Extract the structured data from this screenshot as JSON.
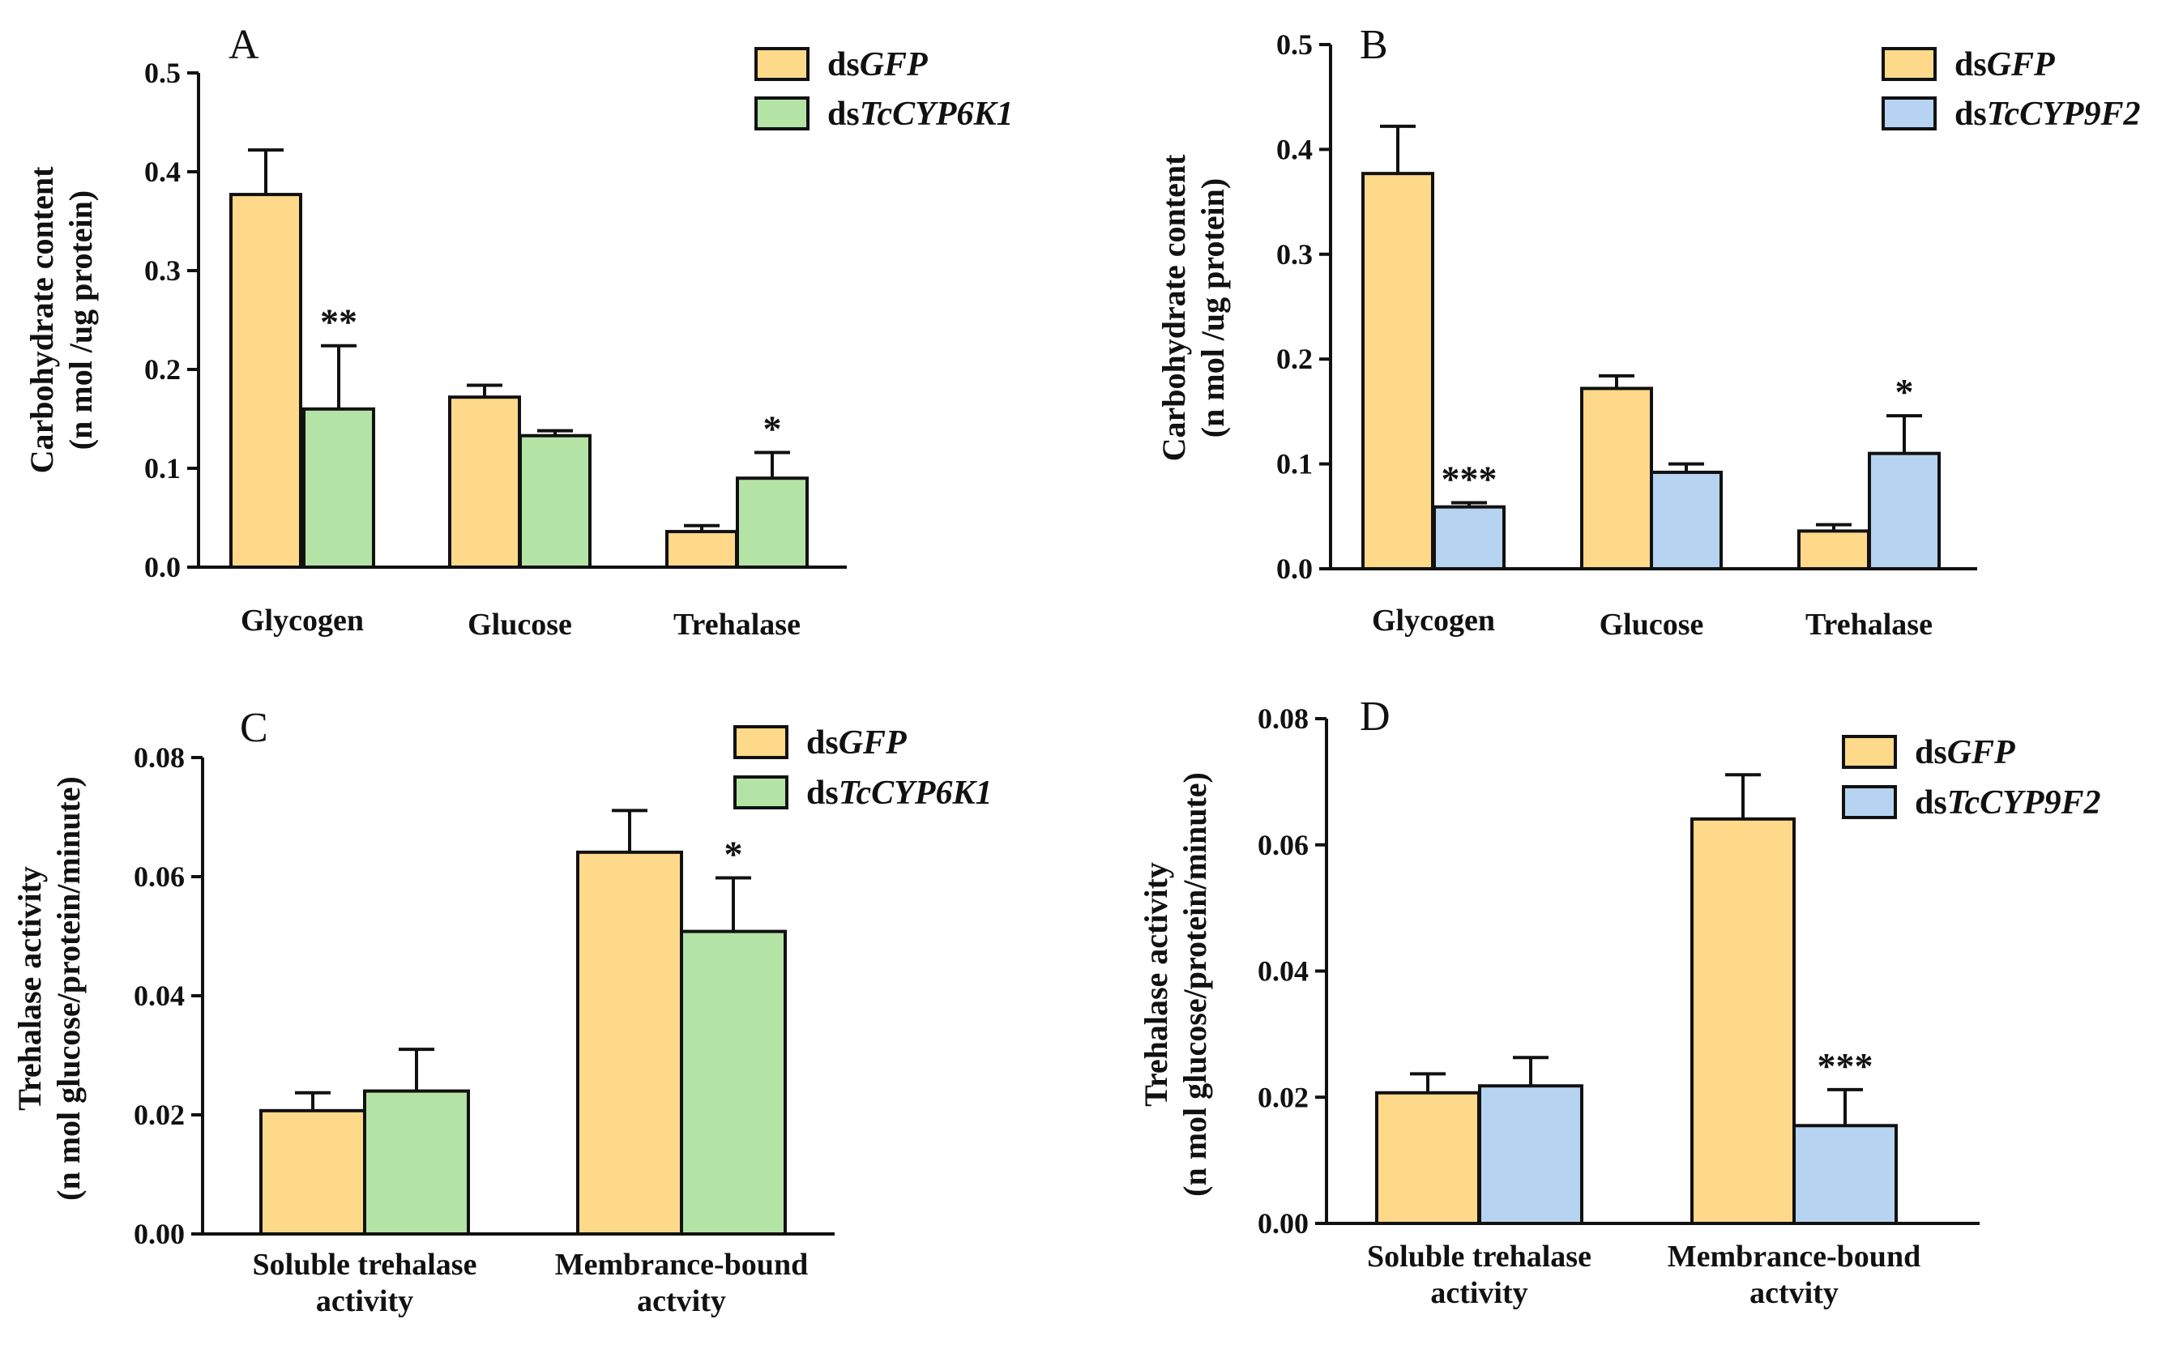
{
  "colors": {
    "gfp": "#FFD98A",
    "cyp6k1": "#B4E3A6",
    "cyp9f2": "#B6D3F1",
    "outline": "#111111"
  },
  "chart_data": [
    {
      "panel": "A",
      "type": "bar",
      "categories": [
        "Glycogen",
        "Glucose",
        "Trehalase"
      ],
      "ylabel": [
        "Carbohydrate content",
        "(n mol /ug protein)"
      ],
      "ylim": [
        0,
        0.5
      ],
      "yticks": [
        "0.0",
        "0.1",
        "0.2",
        "0.3",
        "0.4",
        "0.5"
      ],
      "series": [
        {
          "name_prefix": "ds",
          "name_italic": "GFP",
          "color_key": "gfp",
          "values": [
            0.377,
            0.172,
            0.036
          ],
          "errors": [
            0.045,
            0.012,
            0.006
          ]
        },
        {
          "name_prefix": "ds",
          "name_italic": "TcCYP6K1",
          "color_key": "cyp6k1",
          "values": [
            0.16,
            0.133,
            0.09
          ],
          "errors": [
            0.064,
            0.005,
            0.026
          ]
        }
      ],
      "significance": [
        "**",
        "",
        "*"
      ]
    },
    {
      "panel": "B",
      "type": "bar",
      "categories": [
        "Glycogen",
        "Glucose",
        "Trehalase"
      ],
      "ylabel": [
        "Carbohydrate content",
        "(n mol /ug protein)"
      ],
      "ylim": [
        0,
        0.5
      ],
      "yticks": [
        "0.0",
        "0.1",
        "0.2",
        "0.3",
        "0.4",
        "0.5"
      ],
      "series": [
        {
          "name_prefix": "ds",
          "name_italic": "GFP",
          "color_key": "gfp",
          "values": [
            0.377,
            0.172,
            0.036
          ],
          "errors": [
            0.045,
            0.012,
            0.006
          ]
        },
        {
          "name_prefix": "ds",
          "name_italic": "TcCYP9F2",
          "color_key": "cyp9f2",
          "values": [
            0.059,
            0.092,
            0.11
          ],
          "errors": [
            0.004,
            0.008,
            0.036
          ]
        }
      ],
      "significance": [
        "***",
        "",
        "*"
      ]
    },
    {
      "panel": "C",
      "type": "bar",
      "categories": [
        [
          "Soluble trehalase",
          "activity"
        ],
        [
          "Membrance-bound",
          "actvity"
        ]
      ],
      "ylabel": [
        "Trehalase activity",
        "(n mol glucose/protein/minute)"
      ],
      "ylim": [
        0,
        0.08
      ],
      "yticks": [
        "0.00",
        "0.02",
        "0.04",
        "0.06",
        "0.08"
      ],
      "series": [
        {
          "name_prefix": "ds",
          "name_italic": "GFP",
          "color_key": "gfp",
          "values": [
            0.0207,
            0.0641
          ],
          "errors": [
            0.003,
            0.007
          ]
        },
        {
          "name_prefix": "ds",
          "name_italic": "TcCYP6K1",
          "color_key": "cyp6k1",
          "values": [
            0.024,
            0.0508
          ],
          "errors": [
            0.007,
            0.009
          ]
        }
      ],
      "significance": [
        "",
        "*"
      ]
    },
    {
      "panel": "D",
      "type": "bar",
      "categories": [
        [
          "Soluble trehalase",
          "activity"
        ],
        [
          "Membrance-bound",
          "actvity"
        ]
      ],
      "ylabel": [
        "Trehalase activity",
        "(n mol glucose/protein/minute)"
      ],
      "ylim": [
        0,
        0.08
      ],
      "yticks": [
        "0.00",
        "0.02",
        "0.04",
        "0.06",
        "0.08"
      ],
      "series": [
        {
          "name_prefix": "ds",
          "name_italic": "GFP",
          "color_key": "gfp",
          "values": [
            0.0207,
            0.0641
          ],
          "errors": [
            0.003,
            0.007
          ]
        },
        {
          "name_prefix": "ds",
          "name_italic": "TcCYP9F2",
          "color_key": "cyp9f2",
          "values": [
            0.0218,
            0.0155
          ],
          "errors": [
            0.0045,
            0.0057
          ]
        }
      ],
      "significance": [
        "",
        "***"
      ]
    }
  ]
}
